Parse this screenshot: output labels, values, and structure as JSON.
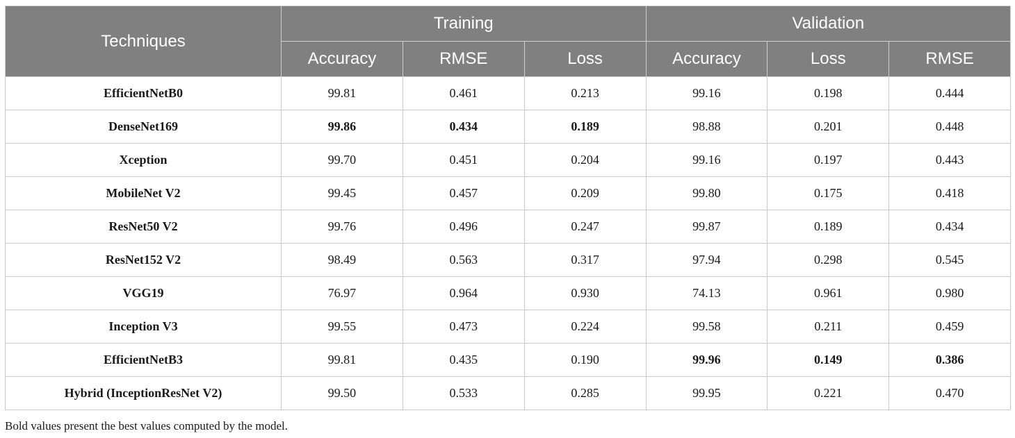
{
  "table": {
    "header_techniques": "Techniques",
    "group_training": "Training",
    "group_validation": "Validation",
    "training_cols": [
      "Accuracy",
      "RMSE",
      "Loss"
    ],
    "validation_cols": [
      "Accuracy",
      "Loss",
      "RMSE"
    ],
    "rows": [
      {
        "technique": "EfficientNetB0",
        "values": [
          "99.81",
          "0.461",
          "0.213",
          "99.16",
          "0.198",
          "0.444"
        ]
      },
      {
        "technique": "DenseNet169",
        "values": [
          "99.86",
          "0.434",
          "0.189",
          "98.88",
          "0.201",
          "0.448"
        ]
      },
      {
        "technique": "Xception",
        "values": [
          "99.70",
          "0.451",
          "0.204",
          "99.16",
          "0.197",
          "0.443"
        ]
      },
      {
        "technique": "MobileNet V2",
        "values": [
          "99.45",
          "0.457",
          "0.209",
          "99.80",
          "0.175",
          "0.418"
        ]
      },
      {
        "technique": "ResNet50 V2",
        "values": [
          "99.76",
          "0.496",
          "0.247",
          "99.87",
          "0.189",
          "0.434"
        ]
      },
      {
        "technique": "ResNet152 V2",
        "values": [
          "98.49",
          "0.563",
          "0.317",
          "97.94",
          "0.298",
          "0.545"
        ]
      },
      {
        "technique": "VGG19",
        "values": [
          "76.97",
          "0.964",
          "0.930",
          "74.13",
          "0.961",
          "0.980"
        ]
      },
      {
        "technique": "Inception V3",
        "values": [
          "99.55",
          "0.473",
          "0.224",
          "99.58",
          "0.211",
          "0.459"
        ]
      },
      {
        "technique": "EfficientNetB3",
        "values": [
          "99.81",
          "0.435",
          "0.190",
          "99.96",
          "0.149",
          "0.386"
        ]
      },
      {
        "technique": "Hybrid (InceptionResNet V2)",
        "values": [
          "99.50",
          "0.533",
          "0.285",
          "99.95",
          "0.221",
          "0.470"
        ]
      }
    ]
  },
  "footnote": "Bold values present the best values computed by the model."
}
